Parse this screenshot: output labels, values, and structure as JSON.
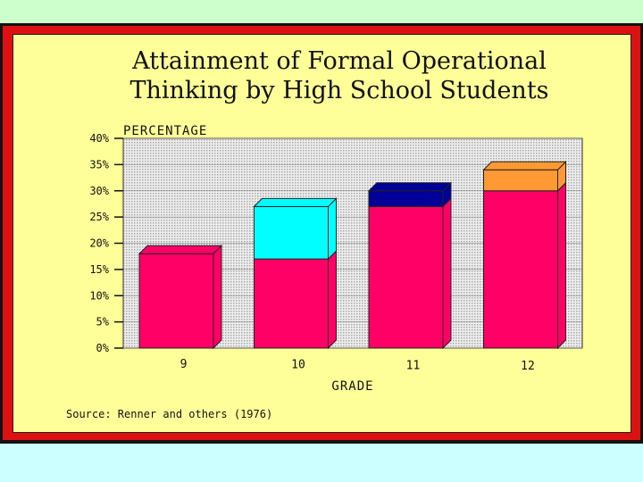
{
  "title": "Attainment of Formal Operational\nThinking by High School Students",
  "source": "Source:  Renner and others (1976)",
  "colors": {
    "background": "#ccffcc",
    "bottom_band": "#ccffff",
    "border": "#dd1111",
    "panel": "#ffff99",
    "base_bar": "#ff0066",
    "plot_area": "#d8d8d8"
  },
  "chart_data": {
    "type": "bar",
    "stacked": true,
    "title": "Attainment of Formal Operational Thinking by High School Students",
    "ylabel": "PERCENTAGE",
    "xlabel": "GRADE",
    "categories": [
      "9",
      "10",
      "11",
      "12"
    ],
    "y_ticks": [
      "0%",
      "5%",
      "10%",
      "15%",
      "20%",
      "25%",
      "30%",
      "35%",
      "40%"
    ],
    "ylim": [
      0,
      40
    ],
    "grid": true,
    "bars": [
      {
        "category": "9",
        "segments": [
          {
            "value": 18,
            "color": "#ff0066"
          }
        ]
      },
      {
        "category": "10",
        "segments": [
          {
            "value": 17,
            "color": "#ff0066"
          },
          {
            "value": 10,
            "color": "#00ffff"
          }
        ]
      },
      {
        "category": "11",
        "segments": [
          {
            "value": 27,
            "color": "#ff0066"
          },
          {
            "value": 3,
            "color": "#000099"
          }
        ]
      },
      {
        "category": "12",
        "segments": [
          {
            "value": 30,
            "color": "#ff0066"
          },
          {
            "value": 4,
            "color": "#ff9933"
          }
        ]
      }
    ]
  }
}
